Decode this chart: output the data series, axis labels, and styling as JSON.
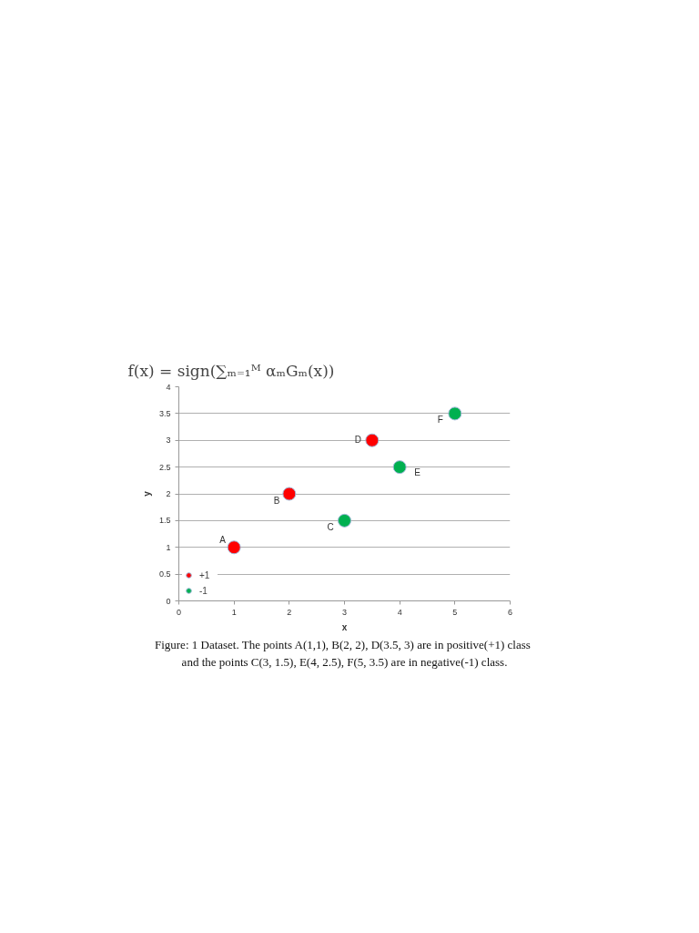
{
  "chart_data": {
    "type": "scatter",
    "title": "f(x) = sign(∑ₘ₌₁ᴹ αₘGₘ(x))",
    "xlabel": "x",
    "ylabel": "y",
    "series": [
      {
        "name": "+1",
        "color": "#ff0000",
        "x": [
          1,
          2,
          3.5
        ],
        "values": [
          1,
          2,
          3
        ]
      },
      {
        "name": "-1",
        "color": "#00b050",
        "x": [
          3,
          4,
          5
        ],
        "values": [
          1.5,
          2.5,
          3.5
        ]
      }
    ],
    "xlim": [
      0,
      6
    ],
    "xticks": [
      0,
      1,
      2,
      3,
      4,
      5,
      6
    ],
    "ylim": [
      0,
      4
    ],
    "yticks": [
      0,
      0.5,
      1,
      1.5,
      2,
      2.5,
      3,
      3.5,
      4
    ],
    "grid": "y",
    "legend": "bottom left",
    "marker": "circle",
    "annotations": [
      {
        "text": "A",
        "x": 1,
        "y": 1
      },
      {
        "text": "B",
        "x": 2,
        "y": 2
      },
      {
        "text": "C",
        "x": 3,
        "y": 1.5
      },
      {
        "text": "D",
        "x": 3.5,
        "y": 3
      },
      {
        "text": "E",
        "x": 4,
        "y": 2.5
      },
      {
        "text": "F",
        "x": 5,
        "y": 3.5
      },
      "Figure: 1 Dataset. The points  A(1,1), B(2, 2), D(3.5, 3) are in positive(+1) class\nand the points C(3, 1.5), E(4, 2.5), F(5, 3.5) are in negative(-1) class."
    ]
  }
}
